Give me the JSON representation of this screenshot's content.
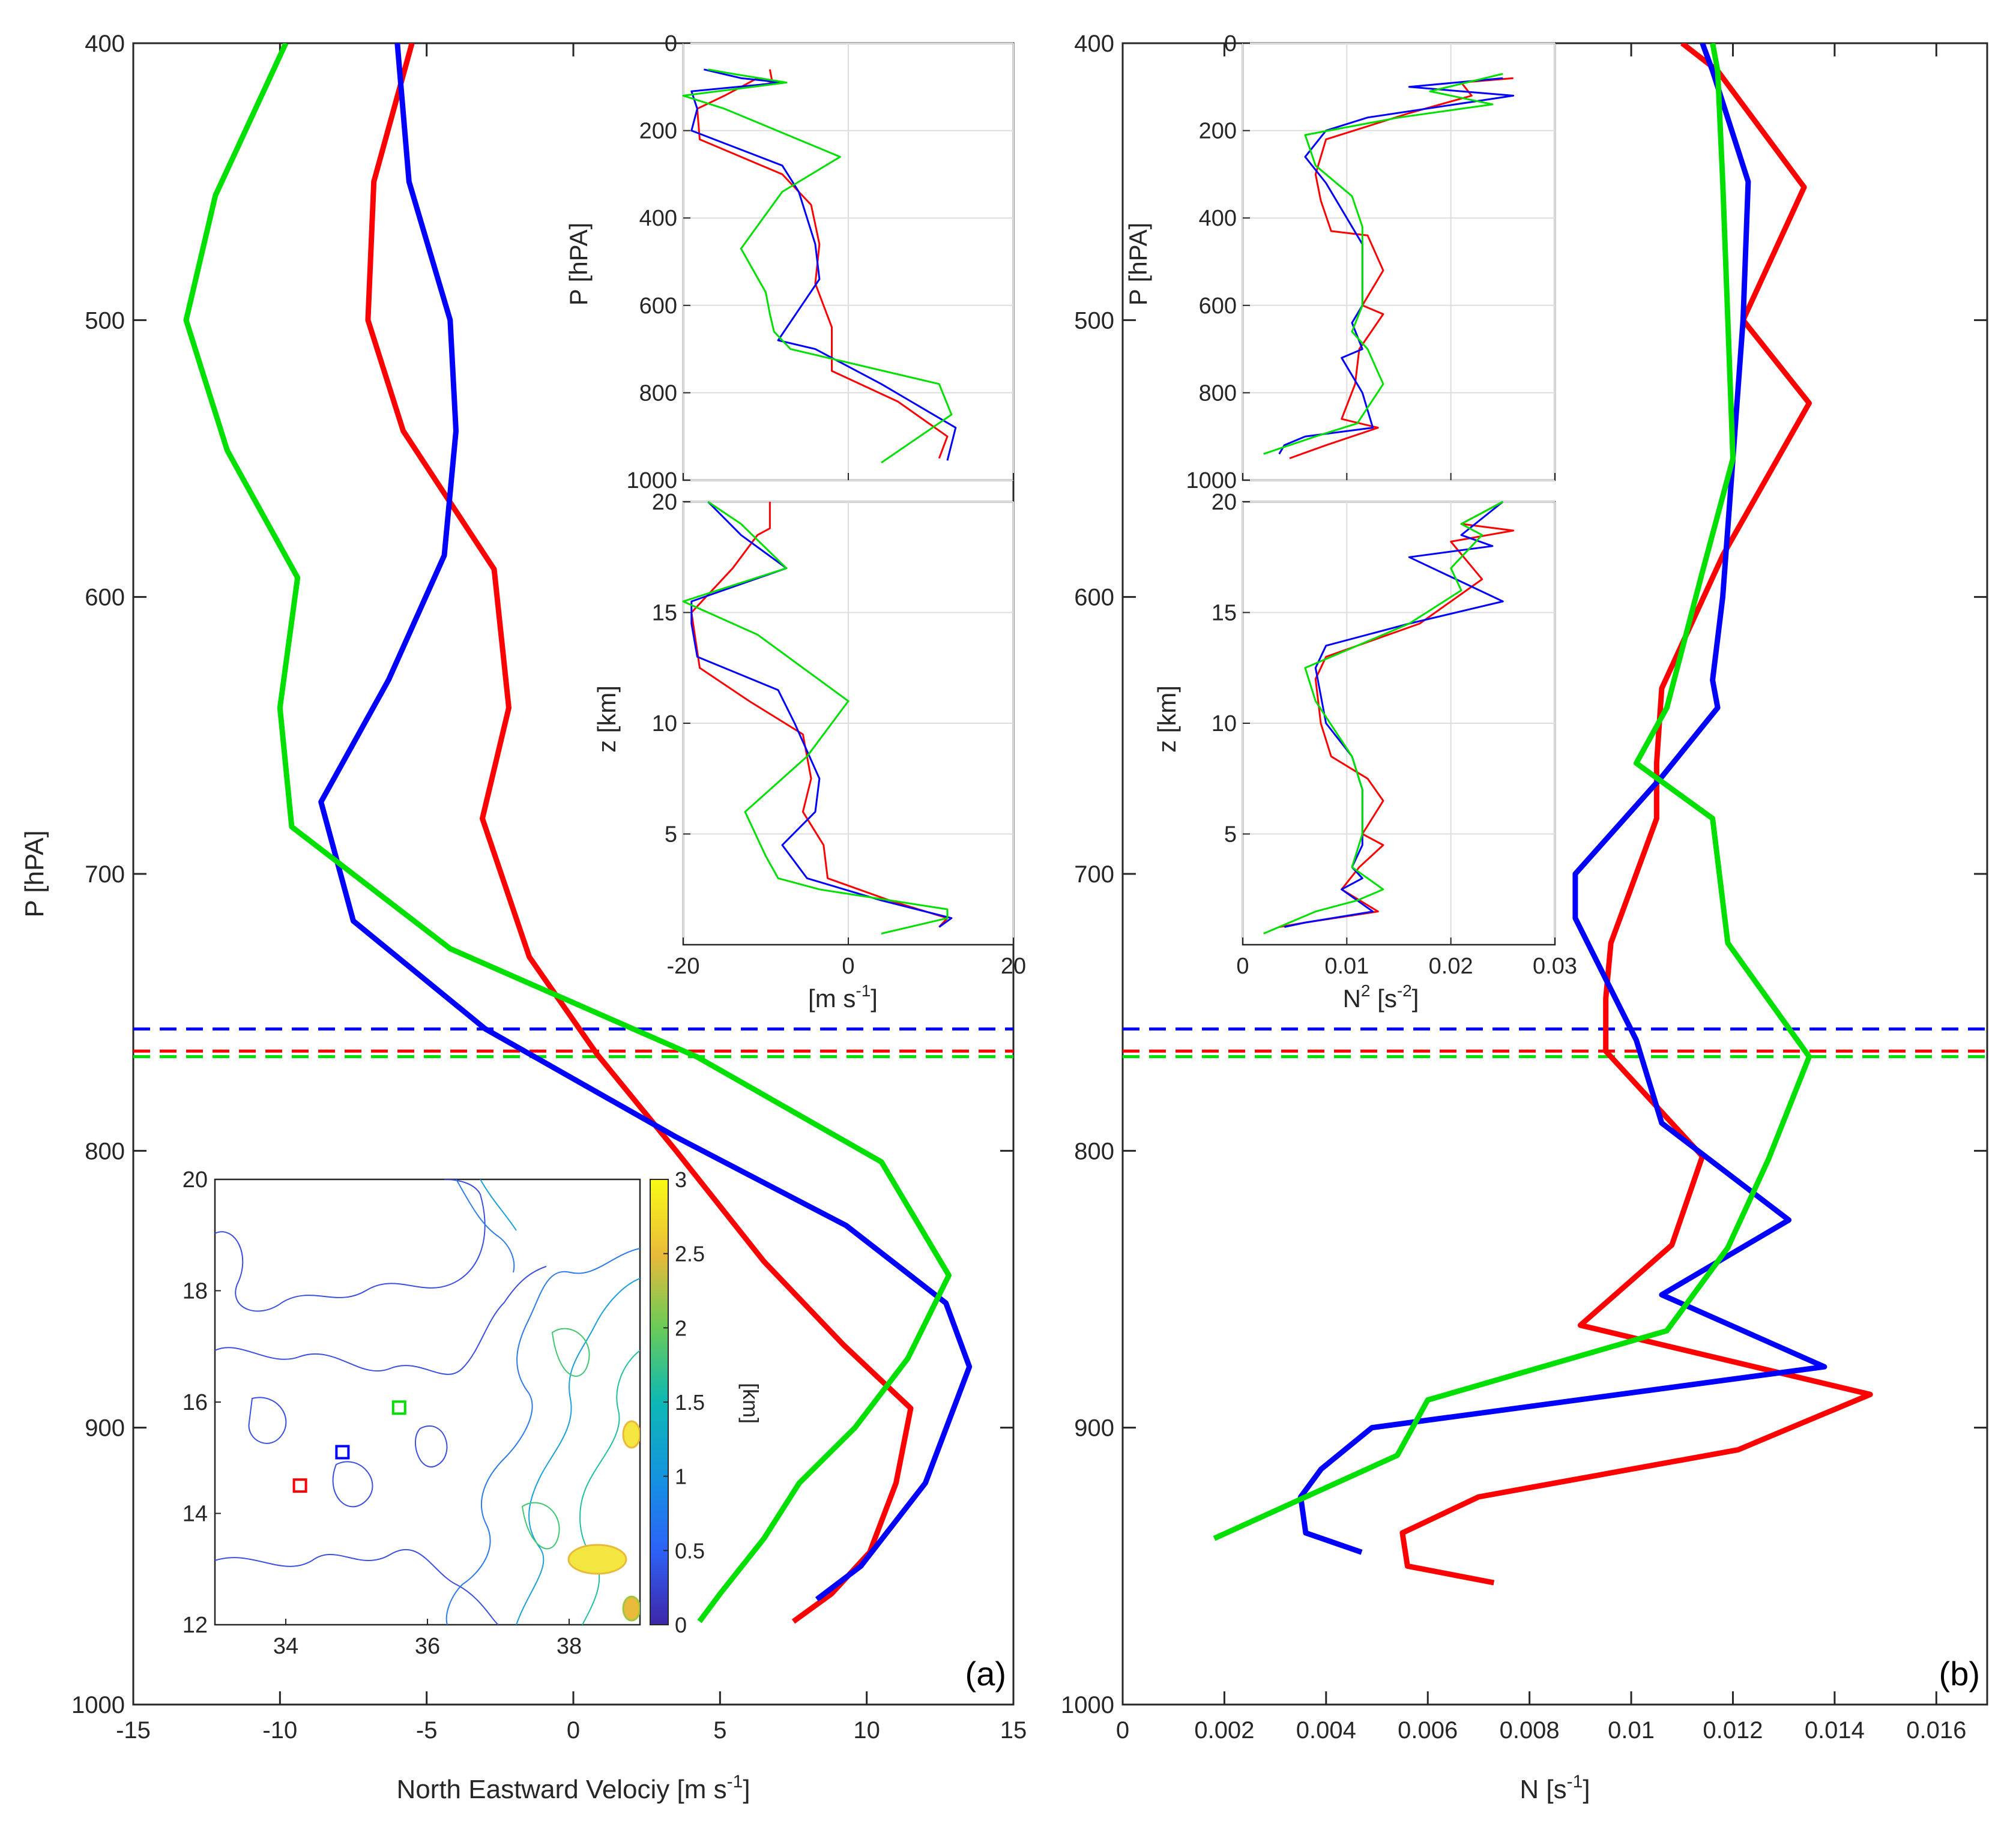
{
  "colors": {
    "red": "#ff0000",
    "blue": "#0000ff",
    "green": "#00e000",
    "grid": "#dddddd"
  },
  "chart_data": [
    {
      "id": "main_a",
      "type": "line",
      "panel_label": "(a)",
      "xlabel": "North Eastward Velociy [m s^-1]",
      "xlabel_main": "North Eastward Velociy [m s",
      "xlabel_sup": "-1",
      "xlabel_end": "]",
      "ylabel": "P [hPA]",
      "xlim": [
        -15,
        15
      ],
      "ylim": [
        400,
        1000
      ],
      "y_reversed": true,
      "xticks": [
        -15,
        -10,
        -5,
        0,
        5,
        10,
        15
      ],
      "yticks": [
        400,
        500,
        600,
        700,
        800,
        900,
        1000
      ],
      "series": [
        {
          "name": "red",
          "color": "red",
          "x": [
            -5.5,
            -6.8,
            -7,
            -5.8,
            -2.7,
            -2.2,
            -3.1,
            -1.5,
            0.8,
            3.5,
            6.5,
            9.2,
            11.5,
            11.0,
            10.1,
            8.8,
            7.5
          ],
          "y": [
            400,
            450,
            500,
            540,
            590,
            640,
            680,
            730,
            765,
            800,
            840,
            870,
            893,
            920,
            945,
            960,
            970
          ]
        },
        {
          "name": "blue",
          "color": "blue",
          "x": [
            -6.0,
            -5.6,
            -4.2,
            -4.0,
            -4.4,
            -6.3,
            -8.6,
            -7.5,
            -3.0,
            3.5,
            9.3,
            12.7,
            13.5,
            12.0,
            9.8,
            8.3
          ],
          "y": [
            400,
            450,
            500,
            540,
            585,
            630,
            674,
            717,
            756,
            795,
            827,
            855,
            878,
            920,
            950,
            962
          ]
        },
        {
          "name": "green",
          "color": "green",
          "x": [
            -9.8,
            -12.2,
            -13.2,
            -11.8,
            -9.4,
            -10.0,
            -9.6,
            -4.2,
            4.2,
            10.5,
            12.8,
            11.4,
            9.6,
            7.7,
            6.5,
            5.0,
            4.3
          ],
          "y": [
            400,
            455,
            500,
            547,
            593,
            640,
            683,
            727,
            766,
            804,
            845,
            875,
            900,
            920,
            940,
            960,
            970
          ]
        }
      ],
      "hlines": [
        {
          "color": "blue",
          "y": 756
        },
        {
          "color": "red",
          "y": 764
        },
        {
          "color": "green",
          "y": 766
        }
      ]
    },
    {
      "id": "main_b",
      "type": "line",
      "panel_label": "(b)",
      "xlabel": "N [s^-1]",
      "xlabel_main": "N [s",
      "xlabel_sup": "-1",
      "xlabel_end": "]",
      "xlim": [
        0,
        0.017
      ],
      "ylim": [
        400,
        1000
      ],
      "y_reversed": true,
      "xticks": [
        0,
        0.002,
        0.004,
        0.006,
        0.008,
        0.01,
        0.012,
        0.014,
        0.016
      ],
      "xtick_labels": [
        "0",
        "0.002",
        "0.004",
        "0.006",
        "0.008",
        "0.01",
        "0.012",
        "0.014",
        "0.016"
      ],
      "yticks": [
        400,
        500,
        600,
        700,
        800,
        900,
        1000
      ],
      "series": [
        {
          "name": "red",
          "color": "red",
          "x": [
            0.011,
            0.0117,
            0.0134,
            0.0122,
            0.0135,
            0.0118,
            0.0106,
            0.0105,
            0.0105,
            0.0096,
            0.0095,
            0.0095,
            0.0114,
            0.0108,
            0.009,
            0.0147,
            0.0121,
            0.007,
            0.0055,
            0.0056,
            0.0073
          ],
          "y": [
            400,
            410,
            452,
            500,
            530,
            585,
            633,
            660,
            680,
            725,
            745,
            764,
            802,
            834,
            863,
            888,
            908,
            925,
            938,
            950,
            956
          ]
        },
        {
          "name": "blue",
          "color": "blue",
          "x": [
            0.0114,
            0.0116,
            0.0123,
            0.0122,
            0.012,
            0.0118,
            0.0116,
            0.0117,
            0.0106,
            0.0089,
            0.0089,
            0.0101,
            0.0106,
            0.0131,
            0.0106,
            0.0138,
            0.0049,
            0.0039,
            0.0035,
            0.0036,
            0.0047
          ],
          "y": [
            400,
            410,
            450,
            500,
            550,
            600,
            630,
            640,
            665,
            700,
            716,
            760,
            790,
            825,
            852,
            878,
            900,
            915,
            925,
            938,
            945
          ]
        },
        {
          "name": "green",
          "color": "green",
          "x": [
            0.0116,
            0.0117,
            0.0118,
            0.012,
            0.0114,
            0.0107,
            0.0101,
            0.0116,
            0.0119,
            0.0135,
            0.0127,
            0.0119,
            0.0107,
            0.006,
            0.0054,
            0.0018
          ],
          "y": [
            400,
            410,
            450,
            550,
            591,
            640,
            660,
            680,
            725,
            766,
            803,
            835,
            865,
            890,
            910,
            940
          ]
        }
      ],
      "hlines": [
        {
          "color": "blue",
          "y": 756
        },
        {
          "color": "red",
          "y": 764
        },
        {
          "color": "green",
          "y": 766
        }
      ]
    },
    {
      "id": "inset_a_top",
      "type": "line",
      "ylabel": "P [hPA]",
      "xlim": [
        -20,
        20
      ],
      "ylim": [
        0,
        1000
      ],
      "y_reversed": true,
      "xticks": [
        -20,
        0,
        20
      ],
      "yticks": [
        0,
        200,
        400,
        600,
        800,
        1000
      ],
      "series": [
        {
          "name": "red",
          "color": "red",
          "x": [
            -9.5,
            -9.2,
            -11,
            -15,
            -18.3,
            -18,
            -8,
            -4.5,
            -3.5,
            -4,
            -2,
            -2,
            6,
            12,
            11
          ],
          "y": [
            60,
            90,
            80,
            120,
            150,
            220,
            300,
            370,
            460,
            550,
            650,
            750,
            820,
            900,
            950
          ]
        },
        {
          "name": "blue",
          "color": "blue",
          "x": [
            -17.5,
            -13,
            -8,
            -19,
            -18.3,
            -19,
            -8,
            -6,
            -4,
            -3.5,
            -8.5,
            -4,
            4,
            13,
            12
          ],
          "y": [
            60,
            80,
            90,
            110,
            150,
            200,
            280,
            340,
            460,
            540,
            680,
            700,
            780,
            880,
            955
          ]
        },
        {
          "name": "green",
          "color": "green",
          "x": [
            -17,
            -14,
            -7.5,
            -20,
            -15,
            -1,
            -8,
            -13,
            -10,
            -9.5,
            -9,
            -7,
            11,
            12.5,
            4
          ],
          "y": [
            60,
            70,
            90,
            120,
            150,
            260,
            340,
            470,
            570,
            620,
            660,
            700,
            780,
            850,
            960
          ]
        }
      ]
    },
    {
      "id": "inset_a_bottom",
      "type": "line",
      "xlabel": "[m s^-1]",
      "xlabel_main": "[m s",
      "xlabel_sup": "-1",
      "xlabel_end": "]",
      "ylabel": "z [km]",
      "xlim": [
        -20,
        20
      ],
      "ylim": [
        0,
        20
      ],
      "xticks": [
        -20,
        0,
        20
      ],
      "yticks": [
        5,
        10,
        15,
        20
      ],
      "series": [
        {
          "name": "red",
          "color": "red",
          "x": [
            -9.5,
            -9.5,
            -11,
            -14,
            -19,
            -18,
            -12,
            -5.5,
            -4.5,
            -5.5,
            -3,
            -2.5,
            5,
            12,
            11
          ],
          "y": [
            20,
            18.8,
            18.5,
            17,
            15,
            12.5,
            11,
            9.5,
            7.5,
            6,
            4.5,
            3,
            2,
            1.2,
            0.8
          ]
        },
        {
          "name": "blue",
          "color": "blue",
          "x": [
            -17,
            -13,
            -7.5,
            -19,
            -19,
            -18.3,
            -8.5,
            -6.5,
            -3.5,
            -4,
            -8,
            -5,
            4,
            12.5,
            11
          ],
          "y": [
            20,
            18.5,
            17,
            15.5,
            14.5,
            13,
            11.5,
            10,
            7.5,
            6,
            4.5,
            3,
            2,
            1.2,
            0.8
          ]
        },
        {
          "name": "green",
          "color": "green",
          "x": [
            -17,
            -13,
            -7.5,
            -20,
            -11,
            0,
            -5,
            -12.5,
            -10,
            -8.5,
            -3.5,
            12,
            12,
            4
          ],
          "y": [
            20,
            19,
            17,
            15.5,
            14,
            11,
            8.5,
            6,
            4,
            3,
            2.5,
            1.6,
            1.2,
            0.5
          ]
        }
      ]
    },
    {
      "id": "inset_b_top",
      "type": "line",
      "ylabel": "P [hPA]",
      "xlim": [
        0,
        0.03
      ],
      "ylim": [
        0,
        1000
      ],
      "y_reversed": true,
      "xticks": [
        0,
        0.01,
        0.02,
        0.03
      ],
      "yticks": [
        0,
        200,
        400,
        600,
        800,
        1000
      ],
      "series": [
        {
          "name": "red",
          "color": "red",
          "x": [
            0.026,
            0.021,
            0.022,
            0.016,
            0.008,
            0.007,
            0.0075,
            0.0085,
            0.012,
            0.0135,
            0.0115,
            0.0135,
            0.0112,
            0.0108,
            0.0095,
            0.013,
            0.008,
            0.0045
          ],
          "y": [
            80,
            90,
            120,
            160,
            220,
            300,
            360,
            430,
            440,
            520,
            600,
            620,
            700,
            780,
            860,
            880,
            920,
            950
          ]
        },
        {
          "name": "blue",
          "color": "blue",
          "x": [
            0.025,
            0.016,
            0.026,
            0.012,
            0.008,
            0.006,
            0.008,
            0.0105,
            0.0115,
            0.0115,
            0.0105,
            0.0115,
            0.0095,
            0.0115,
            0.0125,
            0.006,
            0.004,
            0.0035
          ],
          "y": [
            80,
            100,
            120,
            170,
            200,
            260,
            320,
            420,
            460,
            600,
            640,
            700,
            720,
            800,
            880,
            900,
            920,
            940
          ]
        },
        {
          "name": "green",
          "color": "green",
          "x": [
            0.025,
            0.018,
            0.024,
            0.015,
            0.006,
            0.007,
            0.0105,
            0.0115,
            0.0115,
            0.0105,
            0.012,
            0.0135,
            0.011,
            0.007,
            0.002
          ],
          "y": [
            70,
            110,
            140,
            170,
            210,
            280,
            350,
            420,
            600,
            660,
            700,
            780,
            870,
            900,
            940
          ]
        }
      ]
    },
    {
      "id": "inset_b_bottom",
      "type": "line",
      "xlabel": "N^2 [s^-2]",
      "xlabel_main": "N",
      "xlabel_sup": "2",
      "xlabel_mid": " [s",
      "xlabel_sup2": "-2",
      "xlabel_end": "]",
      "ylabel": "z [km]",
      "xlim": [
        0,
        0.03
      ],
      "ylim": [
        0,
        20
      ],
      "xticks": [
        0,
        0.01,
        0.02,
        0.03
      ],
      "xtick_labels": [
        "0",
        "0.01",
        "0.02",
        "0.03"
      ],
      "yticks": [
        5,
        10,
        15,
        20
      ],
      "series": [
        {
          "name": "red",
          "color": "red",
          "x": [
            0.025,
            0.021,
            0.026,
            0.02,
            0.023,
            0.017,
            0.008,
            0.007,
            0.0075,
            0.0085,
            0.012,
            0.0135,
            0.0115,
            0.0135,
            0.0112,
            0.0095,
            0.013,
            0.006,
            0.0035
          ],
          "y": [
            20,
            19,
            18.7,
            18.2,
            16.5,
            14.5,
            13,
            12,
            10,
            8.5,
            7.5,
            6.5,
            5,
            4.5,
            3.5,
            2.5,
            1.5,
            1,
            0.8
          ]
        },
        {
          "name": "blue",
          "color": "blue",
          "x": [
            0.025,
            0.021,
            0.024,
            0.016,
            0.025,
            0.016,
            0.008,
            0.007,
            0.008,
            0.0105,
            0.0115,
            0.0115,
            0.0105,
            0.0115,
            0.0095,
            0.0125,
            0.006,
            0.004
          ],
          "y": [
            20,
            18.5,
            18,
            17.5,
            15.5,
            14.5,
            13.5,
            12.5,
            10,
            8.5,
            7,
            4.5,
            3.5,
            3,
            2.5,
            1.5,
            1,
            0.8
          ]
        },
        {
          "name": "green",
          "color": "green",
          "x": [
            0.025,
            0.021,
            0.023,
            0.02,
            0.021,
            0.016,
            0.006,
            0.007,
            0.0105,
            0.0115,
            0.0115,
            0.0105,
            0.012,
            0.0135,
            0.011,
            0.007,
            0.002
          ],
          "y": [
            20,
            19,
            18.5,
            17,
            16,
            14.5,
            12.5,
            11,
            8.5,
            7,
            5,
            3.5,
            3,
            2.5,
            2,
            1.5,
            0.5
          ]
        }
      ]
    },
    {
      "id": "map_inset",
      "type": "heatmap",
      "description": "Contour map of terrain height with colorbar in km",
      "xticks": [
        34,
        36,
        38
      ],
      "yticks": [
        12,
        14,
        16,
        18,
        20
      ],
      "xlim": [
        33,
        39
      ],
      "ylim": [
        12,
        20
      ],
      "colorbar_ticks": [
        0,
        0.5,
        1,
        1.5,
        2,
        2.5,
        3
      ],
      "colorbar_label": "[km]",
      "markers": [
        {
          "color": "green",
          "x": 35.6,
          "y": 15.9
        },
        {
          "color": "blue",
          "x": 34.8,
          "y": 15.1
        },
        {
          "color": "red",
          "x": 34.2,
          "y": 14.5
        }
      ]
    }
  ]
}
